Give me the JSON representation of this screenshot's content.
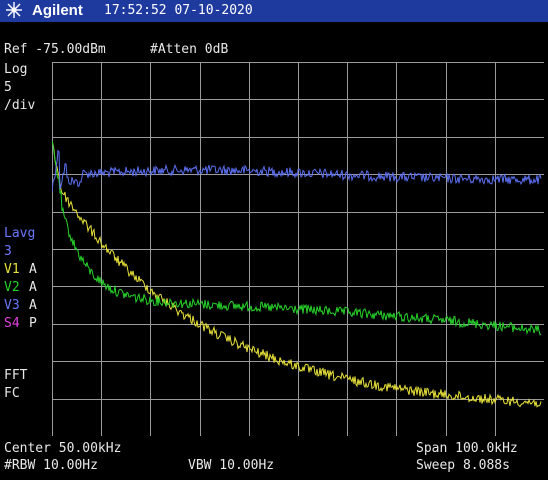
{
  "title_bar": {
    "brand": "Agilent",
    "datetime": "17:52:52 07-10-2020"
  },
  "header": {
    "ref_level": "Ref -75.00dBm",
    "attenuation": "#Atten 0dB"
  },
  "scale": {
    "mode": "Log",
    "value": "5",
    "unit": "/div"
  },
  "trace_panel": {
    "lavg_label": "Lavg",
    "lavg_value": "3",
    "v1_label": "V1",
    "v1_mode": "A",
    "v2_label": "V2",
    "v2_mode": "A",
    "v3_label": "V3",
    "v3_mode": "A",
    "s4_label": "S4",
    "s4_mode": "P",
    "fft_label": "FFT",
    "fc_label": "FC"
  },
  "footer": {
    "center": "Center 50.00kHz",
    "span": "Span 100.0kHz",
    "rbw": "#RBW 10.00Hz",
    "vbw": "VBW 10.00Hz",
    "sweep": "Sweep 8.088s"
  },
  "colors": {
    "title_bar": "#1f3a9e",
    "grid": "#9a9a9a",
    "trace_blue": "#5b6ff0",
    "trace_green": "#27d22a",
    "trace_yellow": "#e8e23a",
    "label_blue": "#6a78ff",
    "label_yellow": "#e8e23a",
    "label_green": "#27d22a",
    "label_magenta": "#e040e0"
  },
  "icons": {
    "logo": "agilent-spark-icon"
  }
}
